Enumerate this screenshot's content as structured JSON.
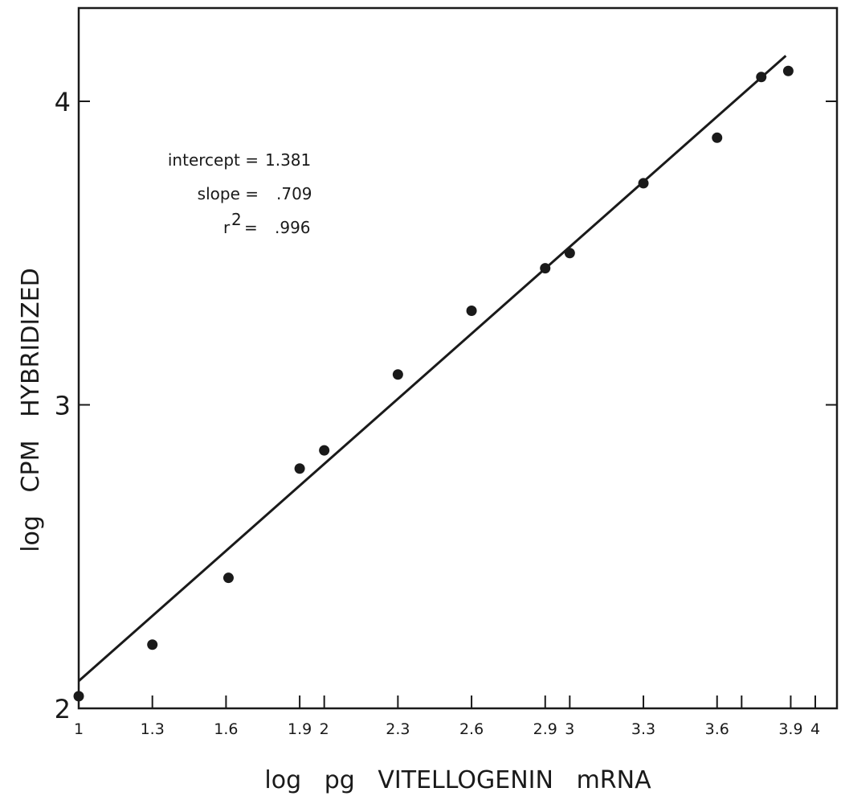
{
  "chart_data": {
    "type": "scatter",
    "title": "",
    "xlabel": "log   pg   VITELLOGENIN   mRNA",
    "ylabel": "log   CPM   HYBRIDIZED",
    "xlim": [
      1,
      4.13
    ],
    "ylim": [
      2,
      4.32
    ],
    "x_ticks": [
      1,
      1.3,
      1.6,
      1.9,
      2,
      2.3,
      2.6,
      2.9,
      3,
      3.3,
      3.6,
      3.7,
      3.9,
      4
    ],
    "x_tick_labels": [
      {
        "value": 1,
        "label": "1"
      },
      {
        "value": 1.3,
        "label": "1.3"
      },
      {
        "value": 1.6,
        "label": "1.6"
      },
      {
        "value": 1.9,
        "label": "1.9"
      },
      {
        "value": 2,
        "label": "2"
      },
      {
        "value": 2.3,
        "label": "2.3"
      },
      {
        "value": 2.6,
        "label": "2.6"
      },
      {
        "value": 2.9,
        "label": "2.9"
      },
      {
        "value": 3,
        "label": "3"
      },
      {
        "value": 3.3,
        "label": "3.3"
      },
      {
        "value": 3.6,
        "label": "3.6"
      },
      {
        "value": 3.9,
        "label": "3.9"
      },
      {
        "value": 4,
        "label": "4"
      }
    ],
    "y_ticks": [
      2,
      3,
      4
    ],
    "y_tick_labels": [
      {
        "value": 2,
        "label": "2"
      },
      {
        "value": 3,
        "label": "3"
      },
      {
        "value": 4,
        "label": "4"
      }
    ],
    "grid": false,
    "series": [
      {
        "points": [
          {
            "x": 1.0,
            "y": 2.04
          },
          {
            "x": 1.3,
            "y": 2.21
          },
          {
            "x": 1.61,
            "y": 2.43
          },
          {
            "x": 1.9,
            "y": 2.79
          },
          {
            "x": 2.0,
            "y": 2.85
          },
          {
            "x": 2.3,
            "y": 3.1
          },
          {
            "x": 2.6,
            "y": 3.31
          },
          {
            "x": 2.9,
            "y": 3.45
          },
          {
            "x": 3.0,
            "y": 3.5
          },
          {
            "x": 3.3,
            "y": 3.73
          },
          {
            "x": 3.6,
            "y": 3.88
          },
          {
            "x": 3.78,
            "y": 4.08
          },
          {
            "x": 3.89,
            "y": 4.1
          }
        ]
      }
    ],
    "fit_line": {
      "x": [
        1.0,
        3.88
      ],
      "y": [
        2.09,
        4.15
      ]
    },
    "annotations": [
      {
        "label": "intercept =",
        "value": "1.381"
      },
      {
        "label": "slope =",
        "value": ".709"
      },
      {
        "label": "r",
        "superscript": "2",
        "after": "=",
        "value": ".996"
      }
    ],
    "colors": {
      "ink": "#1a1a1a",
      "background": "#ffffff"
    }
  }
}
